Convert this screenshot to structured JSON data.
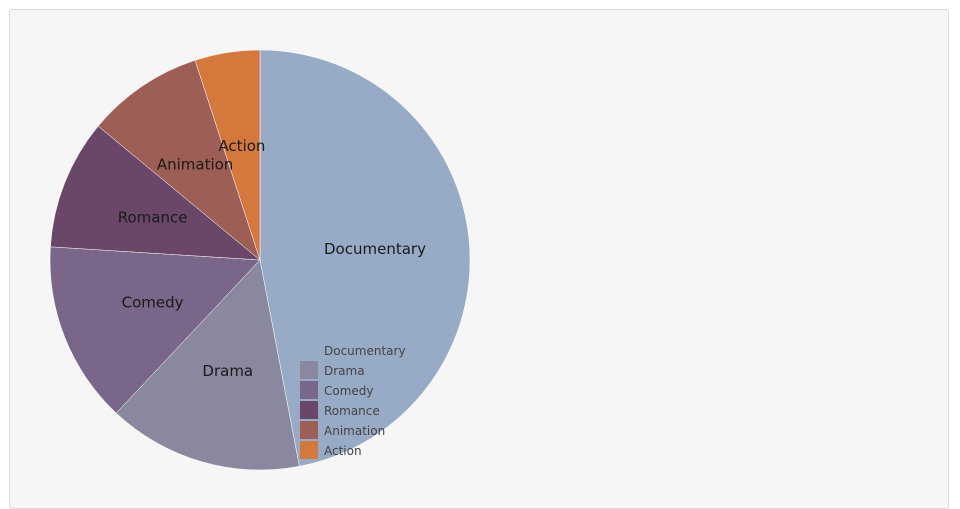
{
  "chart_data": {
    "type": "pie",
    "categories": [
      "Documentary",
      "Drama",
      "Comedy",
      "Romance",
      "Animation",
      "Action"
    ],
    "values": [
      47,
      15,
      14,
      10,
      9,
      5
    ],
    "colors": [
      "#97abc6",
      "#89889f",
      "#7a6689",
      "#6a4768",
      "#9d5e56",
      "#d4783b"
    ],
    "legend_position": "bottom-center overlapping chart",
    "start_angle": "12 o'clock, clockwise"
  }
}
